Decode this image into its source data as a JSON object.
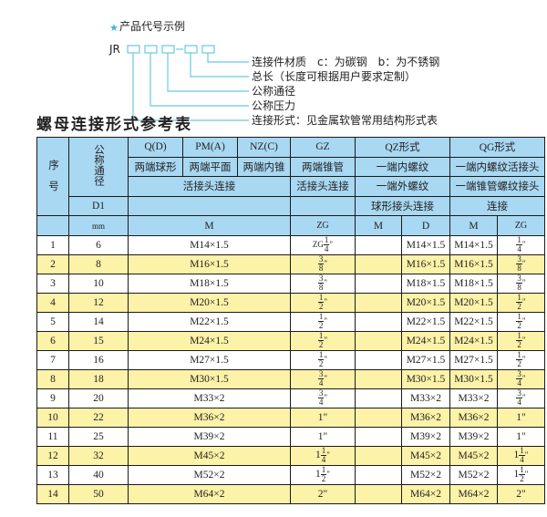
{
  "diagram": {
    "heading": "产品代号示例",
    "code_prefix": "JR",
    "dash": "-",
    "labels": [
      "连接件材质　c：为碳钢　b：为不锈钢",
      "总长（长度可根据用户要求定制）",
      "公称通径",
      "公称压力",
      "连接形式：见金属软管常用结构形式表"
    ],
    "accent_color": "#3fb6dc"
  },
  "table_title": "螺母连接形式参考表",
  "table": {
    "header": {
      "seq": "序　号",
      "nominal": "公称通径",
      "d1": "D1",
      "mm": "mm",
      "q": "Q(D)",
      "pm": "PM(A)",
      "nz": "NZ(C)",
      "gz": "GZ",
      "qz": "QZ形式",
      "qg": "QG形式",
      "q_desc": "两端球形",
      "pm_desc": "两端平面",
      "nz_desc": "两端内锥",
      "gz_desc": "两端锥管",
      "qz_desc": "一端内螺纹",
      "qg_desc": "一端内螺纹活接头",
      "hj": "活接头连接",
      "gz_conn": "活接头连接",
      "qz_conn": "一端外螺纹",
      "qg_conn": "一端锥管螺纹接头",
      "qz_conn2": "球形接头连接",
      "qg_conn2": "连接",
      "m": "M",
      "zg": "ZG",
      "qz_m": "M",
      "qz_d": "D",
      "qg_m": "M",
      "qg_zg": "ZG"
    },
    "rows": [
      {
        "seq": "1",
        "d1": "6",
        "m": "M14×1.5",
        "zg": {
          "pre": "ZG",
          "int": "",
          "num": "1",
          "den": "4",
          "suf": "\""
        },
        "qz_m": "",
        "qz_d": "M14×1.5",
        "qg_m": "M14×1.5",
        "qg_zg": {
          "int": "",
          "num": "1",
          "den": "4",
          "suf": "\""
        }
      },
      {
        "seq": "2",
        "d1": "8",
        "m": "M16×1.5",
        "zg": {
          "pre": "",
          "int": "",
          "num": "3",
          "den": "8",
          "suf": "\""
        },
        "qz_m": "",
        "qz_d": "M16×1.5",
        "qg_m": "M16×1.5",
        "qg_zg": {
          "int": "",
          "num": "3",
          "den": "8",
          "suf": "\""
        }
      },
      {
        "seq": "3",
        "d1": "10",
        "m": "M18×1.5",
        "zg": {
          "pre": "",
          "int": "",
          "num": "3",
          "den": "8",
          "suf": "\""
        },
        "qz_m": "",
        "qz_d": "M18×1.5",
        "qg_m": "M18×1.5",
        "qg_zg": {
          "int": "",
          "num": "3",
          "den": "8",
          "suf": "\""
        }
      },
      {
        "seq": "4",
        "d1": "12",
        "m": "M20×1.5",
        "zg": {
          "pre": "",
          "int": "",
          "num": "1",
          "den": "2",
          "suf": "\""
        },
        "qz_m": "",
        "qz_d": "M20×1.5",
        "qg_m": "M20×1.5",
        "qg_zg": {
          "int": "",
          "num": "1",
          "den": "2",
          "suf": "\""
        }
      },
      {
        "seq": "5",
        "d1": "14",
        "m": "M22×1.5",
        "zg": {
          "pre": "",
          "int": "",
          "num": "1",
          "den": "2",
          "suf": "\""
        },
        "qz_m": "",
        "qz_d": "M22×1.5",
        "qg_m": "M22×1.5",
        "qg_zg": {
          "int": "",
          "num": "1",
          "den": "2",
          "suf": "\""
        }
      },
      {
        "seq": "6",
        "d1": "15",
        "m": "M24×1.5",
        "zg": {
          "pre": "",
          "int": "",
          "num": "1",
          "den": "2",
          "suf": "\""
        },
        "qz_m": "",
        "qz_d": "M24×1.5",
        "qg_m": "M24×1.5",
        "qg_zg": {
          "int": "",
          "num": "1",
          "den": "2",
          "suf": "\""
        }
      },
      {
        "seq": "7",
        "d1": "16",
        "m": "M27×1.5",
        "zg": {
          "pre": "",
          "int": "",
          "num": "1",
          "den": "2",
          "suf": "\""
        },
        "qz_m": "",
        "qz_d": "M27×1.5",
        "qg_m": "M27×1.5",
        "qg_zg": {
          "int": "",
          "num": "1",
          "den": "2",
          "suf": "\""
        }
      },
      {
        "seq": "8",
        "d1": "18",
        "m": "M30×1.5",
        "zg": {
          "pre": "",
          "int": "",
          "num": "3",
          "den": "4",
          "suf": "\""
        },
        "qz_m": "",
        "qz_d": "M30×1.5",
        "qg_m": "M30×1.5",
        "qg_zg": {
          "int": "",
          "num": "3",
          "den": "4",
          "suf": "\""
        }
      },
      {
        "seq": "9",
        "d1": "20",
        "m": "M33×2",
        "zg": {
          "pre": "",
          "int": "",
          "num": "3",
          "den": "4",
          "suf": "\""
        },
        "qz_m": "",
        "qz_d": "M33×2",
        "qg_m": "M33×2",
        "qg_zg": {
          "int": "",
          "num": "3",
          "den": "4",
          "suf": "\""
        }
      },
      {
        "seq": "10",
        "d1": "22",
        "m": "M36×2",
        "zg": {
          "pre": "",
          "int": "1\"",
          "num": "",
          "den": "",
          "suf": ""
        },
        "qz_m": "",
        "qz_d": "M36×2",
        "qg_m": "M36×2",
        "qg_zg": {
          "int": "1\"",
          "num": "",
          "den": "",
          "suf": ""
        }
      },
      {
        "seq": "11",
        "d1": "25",
        "m": "M39×2",
        "zg": {
          "pre": "",
          "int": "1\"",
          "num": "",
          "den": "",
          "suf": ""
        },
        "qz_m": "",
        "qz_d": "M39×2",
        "qg_m": "M39×2",
        "qg_zg": {
          "int": "1\"",
          "num": "",
          "den": "",
          "suf": ""
        }
      },
      {
        "seq": "12",
        "d1": "32",
        "m": "M45×2",
        "zg": {
          "pre": "",
          "int": "1",
          "num": "1",
          "den": "4",
          "suf": "\""
        },
        "qz_m": "",
        "qz_d": "M45×2",
        "qg_m": "M45×2",
        "qg_zg": {
          "int": "1",
          "num": "1",
          "den": "4",
          "suf": "\""
        }
      },
      {
        "seq": "13",
        "d1": "40",
        "m": "M52×2",
        "zg": {
          "pre": "",
          "int": "1",
          "num": "1",
          "den": "2",
          "suf": "\""
        },
        "qz_m": "",
        "qz_d": "M52×2",
        "qg_m": "M52×2",
        "qg_zg": {
          "int": "1",
          "num": "1",
          "den": "2",
          "suf": "\""
        }
      },
      {
        "seq": "14",
        "d1": "50",
        "m": "M64×2",
        "zg": {
          "pre": "",
          "int": "2\"",
          "num": "",
          "den": "",
          "suf": ""
        },
        "qz_m": "",
        "qz_d": "M64×2",
        "qg_m": "M64×2",
        "qg_zg": {
          "int": "2\"",
          "num": "",
          "den": "",
          "suf": ""
        }
      }
    ]
  }
}
